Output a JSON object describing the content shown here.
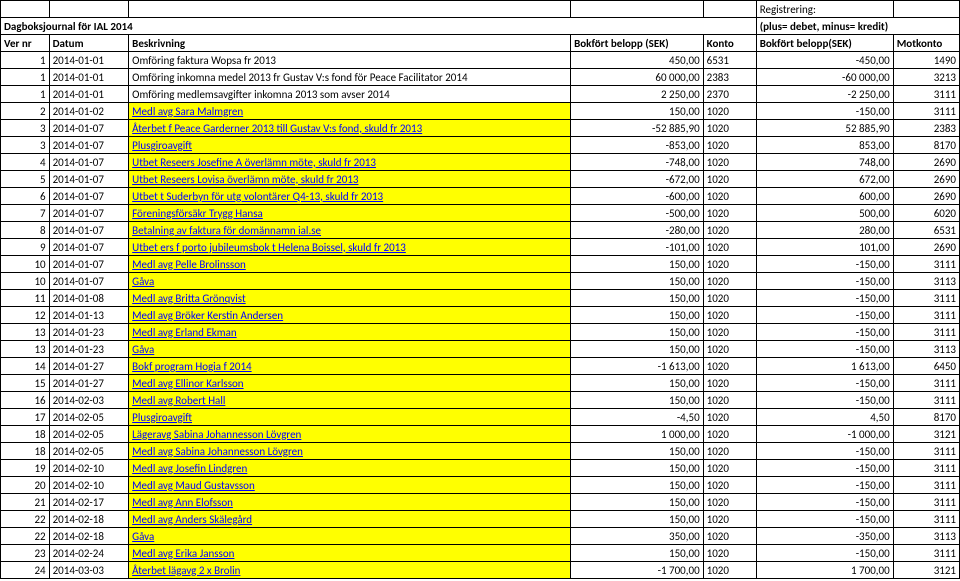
{
  "header": {
    "registrering_label": "Registrering:",
    "title": "Dagboksjournal för IAL 2014",
    "legend": "(plus= debet, minus= kredit)",
    "cols": {
      "ver": "Ver nr",
      "datum": "Datum",
      "beskr": "Beskrivning",
      "belopp1": "Bokfört belopp (SEK)",
      "konto": "Konto",
      "belopp2": "Bokfört belopp(SEK)",
      "mot": "Motkonto"
    }
  },
  "rows": [
    {
      "ver": "1",
      "datum": "2014-01-01",
      "beskr": "Omföring faktura Wopsa fr 2013",
      "b1": "450,00",
      "konto": "6531",
      "b2": "-450,00",
      "mot": "1490",
      "hl": false
    },
    {
      "ver": "1",
      "datum": "2014-01-01",
      "beskr": "Omföring inkomna medel 2013 fr Gustav V:s fond för Peace Facilitator 2014",
      "b1": "60 000,00",
      "konto": "2383",
      "b2": "-60 000,00",
      "mot": "3213",
      "hl": false
    },
    {
      "ver": "1",
      "datum": "2014-01-01",
      "beskr": "Omföring medlemsavgifter inkomna 2013 som avser 2014",
      "b1": "2 250,00",
      "konto": "2370",
      "b2": "-2 250,00",
      "mot": "3111",
      "hl": false
    },
    {
      "ver": "2",
      "datum": "2014-01-02",
      "beskr": "Medl avg Sara Malmgren",
      "b1": "150,00",
      "konto": "1020",
      "b2": "-150,00",
      "mot": "3111",
      "hl": true
    },
    {
      "ver": "3",
      "datum": "2014-01-07",
      "beskr": "Återbet f Peace Garderner 2013 till Gustav V:s fond, skuld fr 2013",
      "b1": "-52 885,90",
      "konto": "1020",
      "b2": "52 885,90",
      "mot": "2383",
      "hl": true
    },
    {
      "ver": "3",
      "datum": "2014-01-07",
      "beskr": "Plusgiroavgift",
      "b1": "-853,00",
      "konto": "1020",
      "b2": "853,00",
      "mot": "8170",
      "hl": true
    },
    {
      "ver": "4",
      "datum": "2014-01-07",
      "beskr": "Utbet Reseers Josefine A överlämn möte, skuld fr 2013",
      "b1": "-748,00",
      "konto": "1020",
      "b2": "748,00",
      "mot": "2690",
      "hl": true
    },
    {
      "ver": "5",
      "datum": "2014-01-07",
      "beskr": "Utbet Reseers Lovisa överlämn möte, skuld fr 2013",
      "b1": "-672,00",
      "konto": "1020",
      "b2": "672,00",
      "mot": "2690",
      "hl": true
    },
    {
      "ver": "6",
      "datum": "2014-01-07",
      "beskr": "Utbet t Suderbyn för utg volontärer Q4-13, skuld fr 2013",
      "b1": "-600,00",
      "konto": "1020",
      "b2": "600,00",
      "mot": "2690",
      "hl": true
    },
    {
      "ver": "7",
      "datum": "2014-01-07",
      "beskr": "Föreningsförsäkr Trygg Hansa",
      "b1": "-500,00",
      "konto": "1020",
      "b2": "500,00",
      "mot": "6020",
      "hl": true
    },
    {
      "ver": "8",
      "datum": "2014-01-07",
      "beskr": "Betalning av faktura för domännamn ial.se",
      "b1": "-280,00",
      "konto": "1020",
      "b2": "280,00",
      "mot": "6531",
      "hl": true
    },
    {
      "ver": "9",
      "datum": "2014-01-07",
      "beskr": "Utbet ers f porto jubileumsbok t Helena Boissel, skuld fr 2013",
      "b1": "-101,00",
      "konto": "1020",
      "b2": "101,00",
      "mot": "2690",
      "hl": true
    },
    {
      "ver": "10",
      "datum": "2014-01-07",
      "beskr": "Medl avg Pelle Brolinsson",
      "b1": "150,00",
      "konto": "1020",
      "b2": "-150,00",
      "mot": "3111",
      "hl": true
    },
    {
      "ver": "10",
      "datum": "2014-01-07",
      "beskr": "Gåva",
      "b1": "150,00",
      "konto": "1020",
      "b2": "-150,00",
      "mot": "3113",
      "hl": true
    },
    {
      "ver": "11",
      "datum": "2014-01-08",
      "beskr": "Medl avg Britta Grönqvist",
      "b1": "150,00",
      "konto": "1020",
      "b2": "-150,00",
      "mot": "3111",
      "hl": true
    },
    {
      "ver": "12",
      "datum": "2014-01-13",
      "beskr": "Medl avg Bröker Kerstin Andersen",
      "b1": "150,00",
      "konto": "1020",
      "b2": "-150,00",
      "mot": "3111",
      "hl": true
    },
    {
      "ver": "13",
      "datum": "2014-01-23",
      "beskr": "Medl avg Erland Ekman",
      "b1": "150,00",
      "konto": "1020",
      "b2": "-150,00",
      "mot": "3111",
      "hl": true
    },
    {
      "ver": "13",
      "datum": "2014-01-23",
      "beskr": "Gåva",
      "b1": "150,00",
      "konto": "1020",
      "b2": "-150,00",
      "mot": "3113",
      "hl": true
    },
    {
      "ver": "14",
      "datum": "2014-01-27",
      "beskr": "Bokf program Hogia f 2014",
      "b1": "-1 613,00",
      "konto": "1020",
      "b2": "1 613,00",
      "mot": "6450",
      "hl": true
    },
    {
      "ver": "15",
      "datum": "2014-01-27",
      "beskr": "Medl avg Ellinor Karlsson",
      "b1": "150,00",
      "konto": "1020",
      "b2": "-150,00",
      "mot": "3111",
      "hl": true
    },
    {
      "ver": "16",
      "datum": "2014-02-03",
      "beskr": "Medl avg Robert Hall",
      "b1": "150,00",
      "konto": "1020",
      "b2": "-150,00",
      "mot": "3111",
      "hl": true
    },
    {
      "ver": "17",
      "datum": "2014-02-05",
      "beskr": "Plusgiroavgift",
      "b1": "-4,50",
      "konto": "1020",
      "b2": "4,50",
      "mot": "8170",
      "hl": true
    },
    {
      "ver": "18",
      "datum": "2014-02-05",
      "beskr": "Lägeravg Sabina Johannesson Lövgren",
      "b1": "1 000,00",
      "konto": "1020",
      "b2": "-1 000,00",
      "mot": "3121",
      "hl": true
    },
    {
      "ver": "18",
      "datum": "2014-02-05",
      "beskr": "Medl avg Sabina Johannesson Lövgren",
      "b1": "150,00",
      "konto": "1020",
      "b2": "-150,00",
      "mot": "3111",
      "hl": true
    },
    {
      "ver": "19",
      "datum": "2014-02-10",
      "beskr": "Medl avg Josefin Lindgren",
      "b1": "150,00",
      "konto": "1020",
      "b2": "-150,00",
      "mot": "3111",
      "hl": true
    },
    {
      "ver": "20",
      "datum": "2014-02-10",
      "beskr": "Medl avg Maud Gustavsson",
      "b1": "150,00",
      "konto": "1020",
      "b2": "-150,00",
      "mot": "3111",
      "hl": true
    },
    {
      "ver": "21",
      "datum": "2014-02-17",
      "beskr": "Medl avg Ann Elofsson",
      "b1": "150,00",
      "konto": "1020",
      "b2": "-150,00",
      "mot": "3111",
      "hl": true
    },
    {
      "ver": "22",
      "datum": "2014-02-18",
      "beskr": "Medl avg Anders Skälegård",
      "b1": "150,00",
      "konto": "1020",
      "b2": "-150,00",
      "mot": "3111",
      "hl": true
    },
    {
      "ver": "22",
      "datum": "2014-02-18",
      "beskr": "Gåva",
      "b1": "350,00",
      "konto": "1020",
      "b2": "-350,00",
      "mot": "3113",
      "hl": true
    },
    {
      "ver": "23",
      "datum": "2014-02-24",
      "beskr": "Medl avg Erika Jansson",
      "b1": "150,00",
      "konto": "1020",
      "b2": "-150,00",
      "mot": "3111",
      "hl": true
    },
    {
      "ver": "24",
      "datum": "2014-03-03",
      "beskr": "Återbet lägavg 2 x Brolin",
      "b1": "-1 700,00",
      "konto": "1020",
      "b2": "1 700,00",
      "mot": "3121",
      "hl": true
    }
  ],
  "style": {
    "highlight_bg": "#ffff00",
    "link_color": "#0000ff"
  }
}
